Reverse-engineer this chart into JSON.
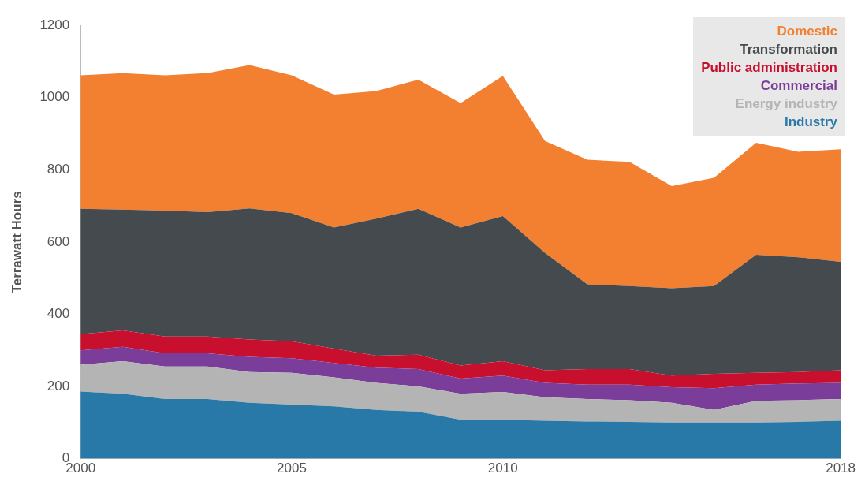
{
  "chart_data": {
    "type": "area",
    "ylabel": "Terrawatt Hours",
    "stacked": true,
    "legend": "top right",
    "marker": "none",
    "grid": false,
    "x": [
      2000,
      2001,
      2002,
      2003,
      2004,
      2005,
      2006,
      2007,
      2008,
      2009,
      2010,
      2011,
      2012,
      2013,
      2014,
      2015,
      2016,
      2017,
      2018
    ],
    "xlim": [
      2000,
      2018
    ],
    "xticks": [
      2000,
      2005,
      2010,
      2018
    ],
    "ylim": [
      0,
      1200
    ],
    "yticks": [
      0,
      200,
      400,
      600,
      800,
      1000,
      1200
    ],
    "series": [
      {
        "name": "Industry",
        "color": "#2878a8",
        "values": [
          186,
          180,
          165,
          165,
          155,
          150,
          145,
          135,
          130,
          108,
          108,
          105,
          103,
          102,
          100,
          100,
          100,
          102,
          105
        ]
      },
      {
        "name": "Energy industry",
        "color": "#b4b4b4",
        "values": [
          74,
          90,
          90,
          90,
          85,
          88,
          80,
          75,
          70,
          72,
          77,
          65,
          62,
          60,
          55,
          35,
          60,
          60,
          60
        ]
      },
      {
        "name": "Commercial",
        "color": "#7a3d9a",
        "values": [
          40,
          40,
          37,
          37,
          42,
          40,
          40,
          42,
          48,
          42,
          45,
          40,
          40,
          43,
          43,
          60,
          45,
          46,
          45
        ]
      },
      {
        "name": "Public administration",
        "color": "#c8102e",
        "values": [
          45,
          45,
          46,
          46,
          48,
          47,
          40,
          33,
          40,
          36,
          40,
          35,
          43,
          43,
          32,
          40,
          33,
          32,
          35
        ]
      },
      {
        "name": "Transformation",
        "color": "#454a4e",
        "values": [
          347,
          335,
          349,
          345,
          363,
          355,
          335,
          380,
          404,
          382,
          402,
          325,
          235,
          230,
          242,
          243,
          327,
          318,
          300
        ]
      },
      {
        "name": "Domestic",
        "color": "#f28030",
        "values": [
          370,
          378,
          375,
          385,
          397,
          382,
          368,
          353,
          358,
          345,
          388,
          310,
          345,
          344,
          283,
          300,
          310,
          292,
          312
        ]
      }
    ]
  }
}
